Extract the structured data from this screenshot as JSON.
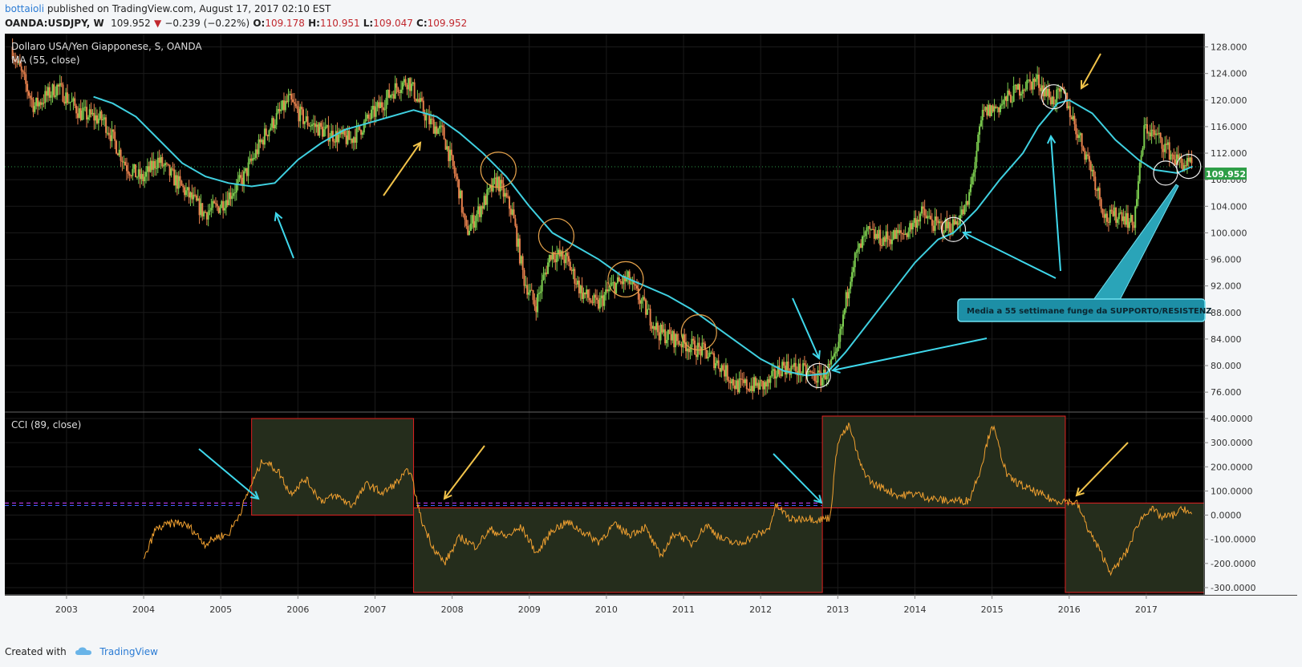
{
  "header": {
    "author": "bottaioli",
    "published": "published on TradingView.com, August 17, 2017 02:10 EST",
    "symbol": "OANDA:USDJPY, W",
    "last": "109.952",
    "change": "−0.239 (−0.22%)",
    "o_label": "O:",
    "o_val": "109.178",
    "h_label": "H:",
    "h_val": "110.951",
    "l_label": "L:",
    "l_val": "109.047",
    "c_label": "C:",
    "c_val": "109.952"
  },
  "footer": {
    "created": "Created with",
    "brand": "TradingView"
  },
  "colors": {
    "bg": "#000000",
    "ma": "#3fd0e0",
    "cci": "#f0a030",
    "up": "#7ccd4f",
    "down": "#e8814d",
    "accent_green": "#2e9e47",
    "box_border": "#e02020",
    "box_fill": "#252d1c"
  },
  "chart_data": [
    {
      "type": "line",
      "title": "Dollaro USA/Yen Giapponese, S, OANDA",
      "indicator": "MA (55, close)",
      "y_axis_side": "right",
      "ylim": [
        73,
        130
      ],
      "yticks": [
        "76.000",
        "80.000",
        "84.000",
        "88.000",
        "92.000",
        "96.000",
        "100.000",
        "104.000",
        "108.000",
        "112.000",
        "116.000",
        "120.000",
        "124.000",
        "128.000"
      ],
      "last_price": "109.952",
      "series": [
        {
          "role": "price",
          "x": [
            2002.3,
            2002.6,
            2002.9,
            2003.2,
            2003.5,
            2003.8,
            2004.0,
            2004.2,
            2004.5,
            2004.8,
            2005.0,
            2005.3,
            2005.6,
            2005.9,
            2006.1,
            2006.4,
            2006.7,
            2007.0,
            2007.3,
            2007.45,
            2007.7,
            2007.9,
            2008.1,
            2008.2,
            2008.4,
            2008.6,
            2008.8,
            2008.95,
            2009.1,
            2009.3,
            2009.5,
            2009.7,
            2009.9,
            2010.1,
            2010.3,
            2010.5,
            2010.7,
            2010.9,
            2011.1,
            2011.3,
            2011.5,
            2011.7,
            2011.9,
            2012.1,
            2012.3,
            2012.6,
            2012.8,
            2013.0,
            2013.2,
            2013.4,
            2013.6,
            2013.9,
            2014.1,
            2014.3,
            2014.5,
            2014.7,
            2014.9,
            2015.1,
            2015.4,
            2015.6,
            2015.8,
            2015.95,
            2016.1,
            2016.3,
            2016.5,
            2016.7,
            2016.85,
            2017.0,
            2017.2,
            2017.4,
            2017.6
          ],
          "y": [
            128,
            119,
            122,
            118,
            117,
            110,
            108,
            111,
            107,
            103,
            104,
            108,
            115,
            120,
            117,
            115,
            114,
            118,
            122,
            123,
            117,
            115,
            107,
            100,
            104,
            108,
            103,
            93,
            89,
            97,
            96,
            91,
            89,
            92,
            93,
            89,
            85,
            84,
            83,
            82,
            80,
            77,
            77,
            77,
            80,
            79,
            78,
            81,
            95,
            100,
            99,
            100,
            103,
            101,
            101,
            104,
            118,
            119,
            122,
            123,
            120,
            121,
            116,
            110,
            102,
            103,
            101,
            116,
            114,
            111,
            110
          ]
        },
        {
          "role": "MA (55, close)",
          "x": [
            2003.35,
            2003.6,
            2003.9,
            2004.2,
            2004.5,
            2004.8,
            2005.1,
            2005.4,
            2005.7,
            2006.0,
            2006.3,
            2006.6,
            2006.9,
            2007.2,
            2007.5,
            2007.8,
            2008.1,
            2008.4,
            2008.7,
            2009.0,
            2009.3,
            2009.6,
            2009.9,
            2010.2,
            2010.5,
            2010.8,
            2011.1,
            2011.4,
            2011.7,
            2012.0,
            2012.3,
            2012.6,
            2012.85,
            2013.1,
            2013.4,
            2013.7,
            2014.0,
            2014.3,
            2014.5,
            2014.8,
            2015.1,
            2015.4,
            2015.6,
            2015.85,
            2016.0,
            2016.3,
            2016.6,
            2016.9,
            2017.1,
            2017.4,
            2017.6
          ],
          "y": [
            120.5,
            119.5,
            117.5,
            114,
            110.5,
            108.5,
            107.5,
            107,
            107.5,
            111,
            113.5,
            115.5,
            116.5,
            117.5,
            118.5,
            117.5,
            115,
            112,
            108.5,
            104,
            100,
            98,
            96,
            93.5,
            92,
            90.5,
            88.5,
            86,
            83.5,
            81,
            79.2,
            78.5,
            78.8,
            82,
            86.5,
            91,
            95.5,
            99,
            100,
            103.5,
            108,
            112,
            116,
            119.5,
            120,
            118,
            114,
            111,
            109.5,
            109,
            110
          ]
        }
      ]
    },
    {
      "type": "line",
      "title": "CCI (89, close)",
      "y_axis_side": "right",
      "ylim": [
        -330,
        420
      ],
      "yticks": [
        "-300.0000",
        "-200.0000",
        "-100.0000",
        "0.0000",
        "100.0000",
        "200.0000",
        "300.0000",
        "400.0000"
      ],
      "reference_lines": [
        50,
        40
      ],
      "series": [
        {
          "role": "CCI (89, close)",
          "x": [
            2004.0,
            2004.15,
            2004.3,
            2004.45,
            2004.6,
            2004.8,
            2004.95,
            2005.1,
            2005.25,
            2005.4,
            2005.55,
            2005.75,
            2005.9,
            2006.1,
            2006.3,
            2006.5,
            2006.7,
            2006.9,
            2007.1,
            2007.3,
            2007.45,
            2007.6,
            2007.75,
            2007.9,
            2008.1,
            2008.3,
            2008.5,
            2008.7,
            2008.9,
            2009.1,
            2009.3,
            2009.5,
            2009.7,
            2009.9,
            2010.1,
            2010.3,
            2010.5,
            2010.7,
            2010.9,
            2011.1,
            2011.3,
            2011.5,
            2011.7,
            2011.9,
            2012.1,
            2012.2,
            2012.4,
            2012.6,
            2012.75,
            2012.9,
            2013.0,
            2013.15,
            2013.3,
            2013.45,
            2013.6,
            2013.8,
            2014.0,
            2014.2,
            2014.4,
            2014.55,
            2014.7,
            2014.85,
            2015.0,
            2015.2,
            2015.4,
            2015.6,
            2015.8,
            2015.95,
            2016.1,
            2016.25,
            2016.4,
            2016.55,
            2016.75,
            2016.9,
            2017.05,
            2017.2,
            2017.35,
            2017.5,
            2017.6
          ],
          "y": [
            -190,
            -60,
            -40,
            -30,
            -50,
            -120,
            -90,
            -80,
            10,
            130,
            230,
            180,
            90,
            150,
            60,
            80,
            40,
            130,
            90,
            140,
            190,
            -20,
            -130,
            -200,
            -90,
            -130,
            -60,
            -90,
            -50,
            -160,
            -60,
            -30,
            -70,
            -110,
            -40,
            -80,
            -50,
            -170,
            -70,
            -120,
            -40,
            -100,
            -120,
            -90,
            -60,
            40,
            -20,
            -10,
            -20,
            -10,
            310,
            370,
            200,
            130,
            110,
            80,
            90,
            70,
            60,
            60,
            60,
            190,
            380,
            160,
            120,
            90,
            60,
            60,
            50,
            -60,
            -150,
            -240,
            -150,
            -30,
            30,
            -10,
            0,
            30,
            -10
          ]
        }
      ],
      "boxes": [
        {
          "x0": 2005.4,
          "x1": 2007.5,
          "y0": 0,
          "y1": 400
        },
        {
          "x0": 2007.5,
          "x1": 2012.8,
          "y0": -320,
          "y1": 30
        },
        {
          "x0": 2012.8,
          "x1": 2015.95,
          "y0": 30,
          "y1": 410
        },
        {
          "x0": 2015.95,
          "x1": 2017.75,
          "y0": -320,
          "y1": 50
        }
      ]
    }
  ],
  "xaxis": {
    "xlim": [
      2002.2,
      2017.75
    ],
    "ticks": [
      "2003",
      "2004",
      "2005",
      "2006",
      "2007",
      "2008",
      "2009",
      "2010",
      "2011",
      "2012",
      "2013",
      "2014",
      "2015",
      "2016",
      "2017"
    ]
  },
  "annotation": {
    "text": "Media a 55 settimane funge da SUPPORTO/RESISTENZ"
  },
  "circles_orange": [
    [
      2008.6,
      109.5
    ],
    [
      2009.35,
      99.5
    ],
    [
      2010.25,
      93
    ],
    [
      2011.2,
      85
    ]
  ],
  "circles_white": [
    [
      2012.75,
      78.5
    ],
    [
      2014.5,
      100.5
    ],
    [
      2015.8,
      120.5
    ],
    [
      2017.25,
      109
    ],
    [
      2017.55,
      110
    ]
  ]
}
